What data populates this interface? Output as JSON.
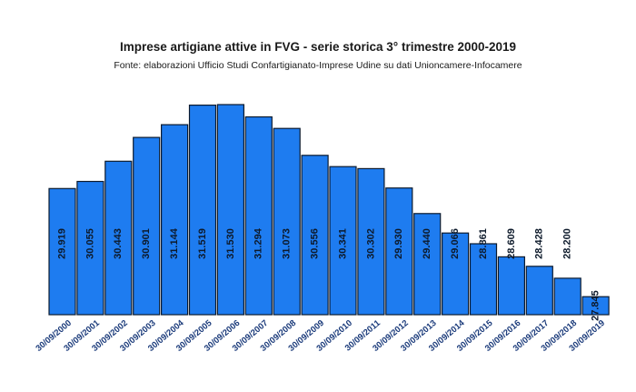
{
  "chart_data": {
    "type": "bar",
    "title": "Imprese artigiane attive in FVG - serie storica 3° trimestre 2000-2019",
    "subtitle": "Fonte: elaborazioni Ufficio Studi Confartigianato-Imprese Udine su dati Unioncamere-Infocamere",
    "categories": [
      "30/09/2000",
      "30/09/2001",
      "30/09/2002",
      "30/09/2003",
      "30/09/2004",
      "30/09/2005",
      "30/09/2006",
      "30/09/2007",
      "30/09/2008",
      "30/09/2009",
      "30/09/2010",
      "30/09/2011",
      "30/09/2012",
      "30/09/2013",
      "30/09/2014",
      "30/09/2015",
      "30/09/2016",
      "30/09/2017",
      "30/09/2018",
      "30/09/2019"
    ],
    "values": [
      29919,
      30055,
      30443,
      30901,
      31144,
      31519,
      31530,
      31294,
      31073,
      30556,
      30341,
      30302,
      29930,
      29440,
      29066,
      28861,
      28609,
      28428,
      28200,
      27845
    ],
    "value_labels": [
      "29.919",
      "30.055",
      "30.443",
      "30.901",
      "31.144",
      "31.519",
      "31.530",
      "31.294",
      "31.073",
      "30.556",
      "30.341",
      "30.302",
      "29.930",
      "29.440",
      "29.066",
      "28.861",
      "28.609",
      "28.428",
      "28.200",
      "27.845"
    ],
    "ylim": [
      27500,
      31530
    ],
    "xlabel": "",
    "ylabel": "",
    "colors": {
      "bar": "#1e7cf0",
      "outline": "#0b1a2e",
      "label": "#0d1a2b",
      "axis_label": "#1a3a7a"
    }
  }
}
